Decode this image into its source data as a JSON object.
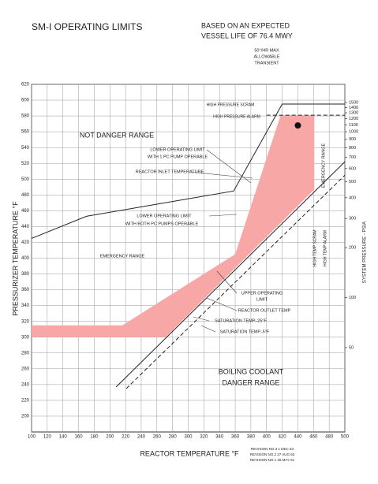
{
  "chart_data": {
    "type": "line",
    "title": "SM-I OPERATING LIMITS",
    "subtitle": [
      "BASED ON AN EXPECTED",
      "VESSEL LIFE OF 76.4 MWY"
    ],
    "x_label": "REACTOR TEMPERATURE °F",
    "y_label": "PRESSURIZER TEMPERATURE °F",
    "y2_label": "SYSTEM PRESSURE - PSIA",
    "xlim": [
      100,
      500
    ],
    "xticks": [
      100,
      120,
      140,
      160,
      180,
      200,
      220,
      240,
      260,
      280,
      300,
      320,
      340,
      360,
      380,
      400,
      420,
      440,
      460,
      480,
      500
    ],
    "ylim": [
      180,
      620
    ],
    "yticks": [
      200,
      220,
      240,
      260,
      280,
      300,
      320,
      340,
      360,
      380,
      400,
      420,
      440,
      460,
      480,
      500,
      520,
      540,
      560,
      580,
      600,
      620
    ],
    "y2scale": "log",
    "y2lim": [
      15.5,
      1930
    ],
    "y2ticks": [
      50,
      100,
      200,
      300,
      400,
      500,
      600,
      700,
      800,
      900,
      1000,
      1100,
      1200,
      1300,
      1400,
      1500
    ],
    "grid": true,
    "region": {
      "color": "#f7a7a5",
      "x": [
        100,
        216,
        360,
        418,
        461,
        461,
        271,
        100
      ],
      "values": [
        315,
        315,
        405,
        581,
        581,
        487,
        300,
        300
      ]
    },
    "point": {
      "x": 440,
      "value": 568,
      "color": "#111111"
    },
    "series": [
      {
        "color": "#222222",
        "dash": false,
        "x": [
          100,
          170,
          358,
          420,
          500
        ],
        "values": [
          425,
          453,
          485,
          595,
          595
        ]
      },
      {
        "color": "#222222",
        "dash": true,
        "x": [
          400,
          500
        ],
        "values": [
          581,
          581
        ]
      },
      {
        "color": "#222222",
        "dash": false,
        "x": [
          208,
          500
        ],
        "values": [
          237,
          522
        ]
      },
      {
        "color": "#222222",
        "dash": true,
        "x": [
          221,
          500
        ],
        "values": [
          235,
          505
        ]
      }
    ],
    "annotations": [
      "50°/HR MAX",
      "ALLOWABLE",
      "TRANSIENT",
      "HIGH PRESSURE SCRAM",
      "HIGH PRESSURE ALARM",
      "NOT DANGER RANGE",
      "LOWER OPERATING LIMIT",
      "WITH 1 PC PUMP OPERABLE",
      "REACTOR INLET TEMPERATURE",
      "LOWER OPERATING LIMIT",
      "WITH BOTH PC PUMPS OPERABLE",
      "EMERGENCY RANGE",
      "EMERGENCY RANGE",
      "HIGH TEMP SCRAM",
      "HIGH TEMP ALARM",
      "UPPER OPERATING",
      "LIMIT",
      "REACTOR OUTLET TEMP",
      "SATURATION TEMP.-25°F",
      "SATURATION TEMP.-5°F",
      "BOILING COOLANT",
      "DANGER RANGE",
      "REVISION NO.3 1 DEC 63",
      "REVISION NO.2 27 AUG 63",
      "REVISION NO.1 25 MAY 61"
    ]
  }
}
